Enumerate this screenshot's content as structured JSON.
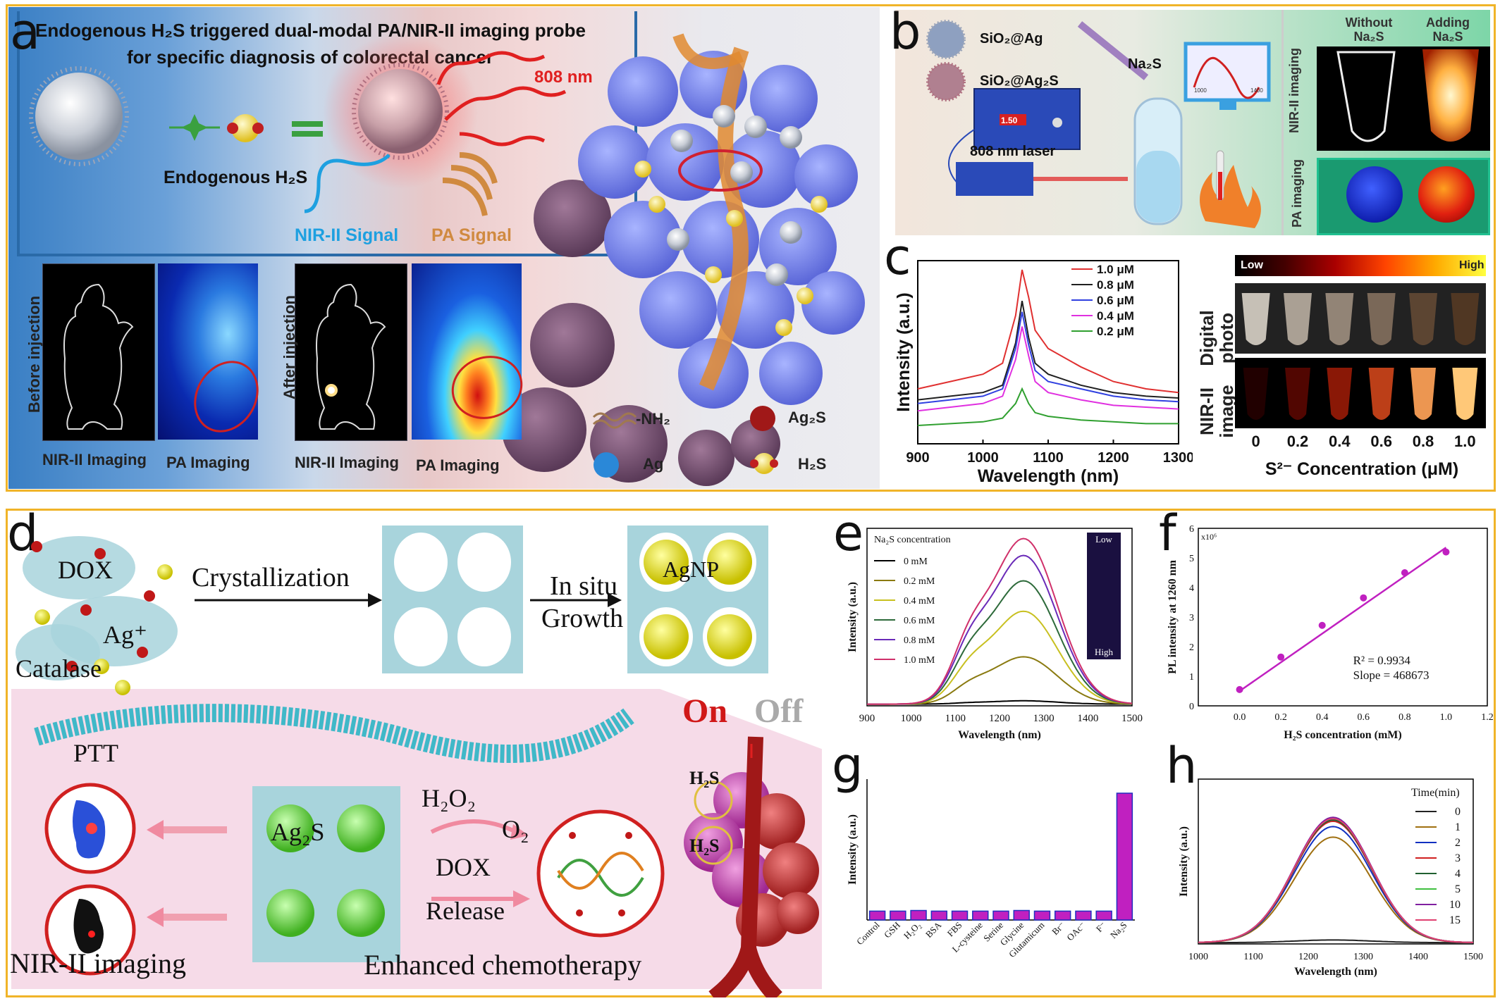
{
  "top": {
    "border_color": "#f0b429",
    "panel_a": {
      "letter": "a",
      "title_line1": "Endogenous H₂S  triggered dual-modal PA/NIR-II imaging probe",
      "title_line2": "for specific diagnosis of colorectal cancer",
      "laser_label": "808 nm",
      "endogenous_label": "Endogenous  H₂S",
      "nir_signal": "NIR-II Signal",
      "pa_signal": "PA Signal",
      "before_injection": "Before injection",
      "after_injection": "After injection",
      "nir_imaging_1": "NIR-II Imaging",
      "pa_imaging_1": "PA Imaging",
      "nir_imaging_2": "NIR-II Imaging",
      "pa_imaging_2": "PA Imaging",
      "legend": {
        "nh2": "-NH₂",
        "ag2s": "Ag₂S",
        "ag": "Ag",
        "h2s": "H₂S"
      }
    },
    "panel_b": {
      "letter": "b",
      "sio2_ag": "SiO₂@Ag",
      "sio2_ag2s": "SiO₂@Ag₂S",
      "na2s": "Na₂S",
      "laser_display": "1.50",
      "laser_label": "808 nm laser",
      "mini_tick1": "1000",
      "mini_tick2": "1400",
      "without": "Without",
      "without_sub": "Na₂S",
      "adding": "Adding",
      "adding_sub": "Na₂S",
      "nir_row": "NIR-II imaging",
      "pa_row": "PA imaging"
    },
    "panel_c": {
      "letter": "c",
      "digital_photo_l1": "Digital",
      "digital_photo_l2": "photo",
      "nir_image_l1": "NIR-II",
      "nir_image_l2": "image",
      "low": "Low",
      "high": "High",
      "conc_ticks": [
        "0",
        "0.2",
        "0.4",
        "0.6",
        "0.8",
        "1.0"
      ],
      "conc_xlabel": "S²⁻ Concentration (μM)",
      "conc_intensity": [
        0.02,
        0.25,
        0.45,
        0.65,
        0.9,
        1.0
      ]
    }
  },
  "bottom": {
    "border_color": "#f0b429",
    "panel_d": {
      "letter": "d",
      "dox": "DOX",
      "ag_plus": "Ag⁺",
      "catalase": "Catalase",
      "crystallization": "Crystallization",
      "in_situ": "In situ",
      "growth": "Growth",
      "agnp": "AgNP",
      "on": "On",
      "off": "Off",
      "ptt": "PTT",
      "ag2s": "Ag₂S",
      "h2o2": "H₂O₂",
      "o2": "O₂",
      "dox_release_1": "DOX",
      "dox_release_2": "Release",
      "h2s_1": "H₂S",
      "h2s_2": "H₂S",
      "nir_imaging": "NIR-II imaging",
      "enhanced": "Enhanced chemotherapy"
    },
    "panel_e": {
      "letter": "e"
    },
    "panel_f": {
      "letter": "f"
    },
    "panel_g": {
      "letter": "g"
    },
    "panel_h": {
      "letter": "h"
    }
  },
  "chart_data": [
    {
      "id": "c",
      "type": "line",
      "xlabel": "Wavelength (nm)",
      "ylabel": "Intensity (a.u.)",
      "xlim": [
        900,
        1300
      ],
      "xticks": [
        900,
        1000,
        1100,
        1200,
        1300
      ],
      "series": [
        {
          "name": "1.0 μM",
          "color": "#e03030",
          "x": [
            900,
            950,
            1000,
            1030,
            1050,
            1060,
            1070,
            1080,
            1100,
            1150,
            1200,
            1250,
            1300
          ],
          "y": [
            0.3,
            0.34,
            0.38,
            0.44,
            0.7,
            0.95,
            0.8,
            0.62,
            0.52,
            0.42,
            0.34,
            0.3,
            0.28
          ]
        },
        {
          "name": "0.8 μM",
          "color": "#202020",
          "x": [
            900,
            950,
            1000,
            1030,
            1050,
            1060,
            1070,
            1080,
            1100,
            1150,
            1200,
            1250,
            1300
          ],
          "y": [
            0.24,
            0.26,
            0.28,
            0.32,
            0.55,
            0.78,
            0.58,
            0.44,
            0.38,
            0.32,
            0.28,
            0.26,
            0.25
          ]
        },
        {
          "name": "0.6 μM",
          "color": "#3040e0",
          "x": [
            900,
            950,
            1000,
            1030,
            1050,
            1060,
            1070,
            1080,
            1100,
            1150,
            1200,
            1250,
            1300
          ],
          "y": [
            0.22,
            0.24,
            0.26,
            0.3,
            0.52,
            0.72,
            0.54,
            0.4,
            0.34,
            0.3,
            0.26,
            0.24,
            0.23
          ]
        },
        {
          "name": "0.4 μM",
          "color": "#e030e0",
          "x": [
            900,
            950,
            1000,
            1030,
            1050,
            1060,
            1070,
            1080,
            1100,
            1150,
            1200,
            1250,
            1300
          ],
          "y": [
            0.18,
            0.2,
            0.22,
            0.26,
            0.46,
            0.64,
            0.48,
            0.34,
            0.28,
            0.24,
            0.21,
            0.2,
            0.19
          ]
        },
        {
          "name": "0.2 μM",
          "color": "#30a030",
          "x": [
            900,
            950,
            1000,
            1030,
            1050,
            1060,
            1070,
            1080,
            1100,
            1150,
            1200,
            1250,
            1300
          ],
          "y": [
            0.1,
            0.11,
            0.12,
            0.14,
            0.22,
            0.3,
            0.22,
            0.17,
            0.15,
            0.13,
            0.12,
            0.11,
            0.11
          ]
        }
      ]
    },
    {
      "id": "e",
      "type": "line",
      "legend_title": "Na₂S concentration",
      "xlabel": "Wavelength (nm)",
      "ylabel": "Intensity (a.u.)",
      "xlim": [
        900,
        1500
      ],
      "xticks": [
        900,
        1000,
        1100,
        1200,
        1300,
        1400,
        1500
      ],
      "inset_low": "Low",
      "inset_high": "High",
      "series": [
        {
          "name": "0 mM",
          "color": "#000000",
          "peak": 0.02
        },
        {
          "name": "0.2 mM",
          "color": "#8a7a10",
          "peak": 0.28
        },
        {
          "name": "0.4 mM",
          "color": "#c8c020",
          "peak": 0.55
        },
        {
          "name": "0.6 mM",
          "color": "#2d6a3a",
          "peak": 0.73
        },
        {
          "name": "0.8 mM",
          "color": "#6a2ab8",
          "peak": 0.88
        },
        {
          "name": "1.0 mM",
          "color": "#d0306a",
          "peak": 0.98
        }
      ]
    },
    {
      "id": "f",
      "type": "scatter",
      "xlabel": "H₂S concentration (mM)",
      "ylabel": "PL intensity at 1260 nm",
      "y_multiplier": "x10⁶",
      "xlim": [
        -0.2,
        1.2
      ],
      "ylim": [
        0,
        6
      ],
      "xticks": [
        0.0,
        0.2,
        0.4,
        0.6,
        0.8,
        1.0,
        1.2
      ],
      "yticks": [
        0,
        1,
        2,
        3,
        4,
        5,
        6
      ],
      "x": [
        0.0,
        0.2,
        0.4,
        0.6,
        0.8,
        1.0
      ],
      "y": [
        0.55,
        1.65,
        2.72,
        3.65,
        4.5,
        5.2
      ],
      "fit_r2": "R² = 0.9934",
      "fit_slope": "Slope = 468673",
      "color": "#c020c0"
    },
    {
      "id": "g",
      "type": "bar",
      "ylabel": "Intensity (a.u.)",
      "categories": [
        "Control",
        "GSH",
        "H₂O₂",
        "BSA",
        "FBS",
        "L-cysteine",
        "Serine",
        "Glycine",
        "Glutamicum",
        "Br⁻",
        "OAc⁻",
        "F⁻",
        "Na₂S"
      ],
      "values": [
        0.07,
        0.07,
        0.075,
        0.07,
        0.07,
        0.07,
        0.07,
        0.075,
        0.07,
        0.07,
        0.07,
        0.07,
        1.0
      ],
      "color": "#c020c0",
      "edge": "#2030c0"
    },
    {
      "id": "h",
      "type": "line",
      "legend_title": "Time(min)",
      "xlabel": "Wavelength (nm)",
      "ylabel": "Intensity (a.u.)",
      "xlim": [
        1000,
        1500
      ],
      "xticks": [
        1000,
        1100,
        1200,
        1300,
        1400,
        1500
      ],
      "series": [
        {
          "name": "0",
          "color": "#222222",
          "peak": 0.02
        },
        {
          "name": "1",
          "color": "#a07010",
          "peak": 0.8
        },
        {
          "name": "2",
          "color": "#1030c0",
          "peak": 0.88
        },
        {
          "name": "3",
          "color": "#d02020",
          "peak": 0.92
        },
        {
          "name": "4",
          "color": "#206030",
          "peak": 0.93
        },
        {
          "name": "5",
          "color": "#40c040",
          "peak": 0.94
        },
        {
          "name": "10",
          "color": "#8020a0",
          "peak": 0.95
        },
        {
          "name": "15",
          "color": "#e04070",
          "peak": 0.94
        }
      ]
    }
  ]
}
